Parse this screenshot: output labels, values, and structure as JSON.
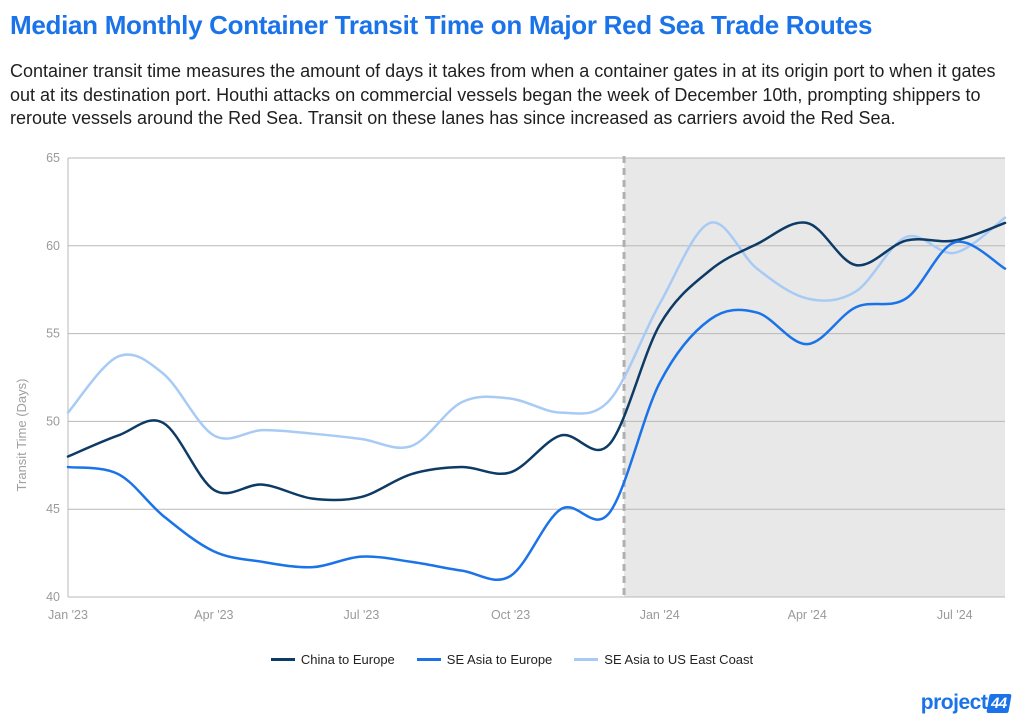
{
  "header": {
    "title": "Median Monthly Container Transit Time on Major Red Sea Trade Routes",
    "subtitle": "Container transit time measures the amount of days it takes from when a container gates in at its origin port to when it gates out at its destination port. Houthi attacks on commercial vessels began the week of December 10th, prompting shippers to reroute vessels around the Red Sea. Transit on these lanes has since increased as carriers avoid the Red Sea."
  },
  "brand": {
    "text": "project",
    "number": "44"
  },
  "colors": {
    "china_europe": "#0d3b66",
    "seasia_europe": "#1a73e8",
    "seasia_useast": "#a8cbf5",
    "title": "#1a73e8",
    "shade": "#e8e8e8",
    "marker": "#b0b0b0"
  },
  "chart_data": {
    "type": "line",
    "ylabel": "Transit Time (Days)",
    "ylim": [
      40,
      65
    ],
    "yticks": [
      40,
      45,
      50,
      55,
      60,
      65
    ],
    "xlim": [
      "2023-01-01",
      "2024-08-01"
    ],
    "xticks": [
      {
        "date": "2023-01-01",
        "label": "Jan '23"
      },
      {
        "date": "2023-04-01",
        "label": "Apr '23"
      },
      {
        "date": "2023-07-01",
        "label": "Jul '23"
      },
      {
        "date": "2023-10-01",
        "label": "Oct '23"
      },
      {
        "date": "2024-01-01",
        "label": "Jan '24"
      },
      {
        "date": "2024-04-01",
        "label": "Apr '24"
      },
      {
        "date": "2024-07-01",
        "label": "Jul '24"
      }
    ],
    "grid": true,
    "event_marker": {
      "date": "2023-12-10"
    },
    "shaded_region": {
      "from": "2023-12-10",
      "to": "2024-08-01"
    },
    "x": [
      "2023-01-01",
      "2023-02-01",
      "2023-03-01",
      "2023-04-01",
      "2023-05-01",
      "2023-06-01",
      "2023-07-01",
      "2023-08-01",
      "2023-09-01",
      "2023-10-01",
      "2023-11-01",
      "2023-12-01",
      "2024-01-01",
      "2024-02-01",
      "2024-03-01",
      "2024-04-01",
      "2024-05-01",
      "2024-06-01",
      "2024-07-01",
      "2024-08-01"
    ],
    "series": [
      {
        "name": "China to Europe",
        "color": "#0d3b66",
        "values": [
          48.0,
          49.2,
          49.9,
          46.1,
          46.4,
          45.6,
          45.7,
          47.0,
          47.4,
          47.1,
          49.2,
          48.7,
          55.5,
          58.6,
          60.1,
          61.3,
          58.9,
          60.3,
          60.3,
          61.3
        ]
      },
      {
        "name": "SE Asia to Europe",
        "color": "#1a73e8",
        "values": [
          47.4,
          47.0,
          44.6,
          42.6,
          42.0,
          41.7,
          42.3,
          42.0,
          41.5,
          41.2,
          45.0,
          44.8,
          52.2,
          55.8,
          56.2,
          54.4,
          56.5,
          57.0,
          60.2,
          58.7
        ]
      },
      {
        "name": "SE Asia to US East Coast",
        "color": "#a8cbf5",
        "values": [
          50.5,
          53.7,
          52.7,
          49.2,
          49.5,
          49.3,
          49.0,
          48.6,
          51.1,
          51.3,
          50.5,
          51.2,
          56.7,
          61.3,
          58.7,
          57.0,
          57.4,
          60.5,
          59.6,
          61.6
        ]
      }
    ]
  }
}
